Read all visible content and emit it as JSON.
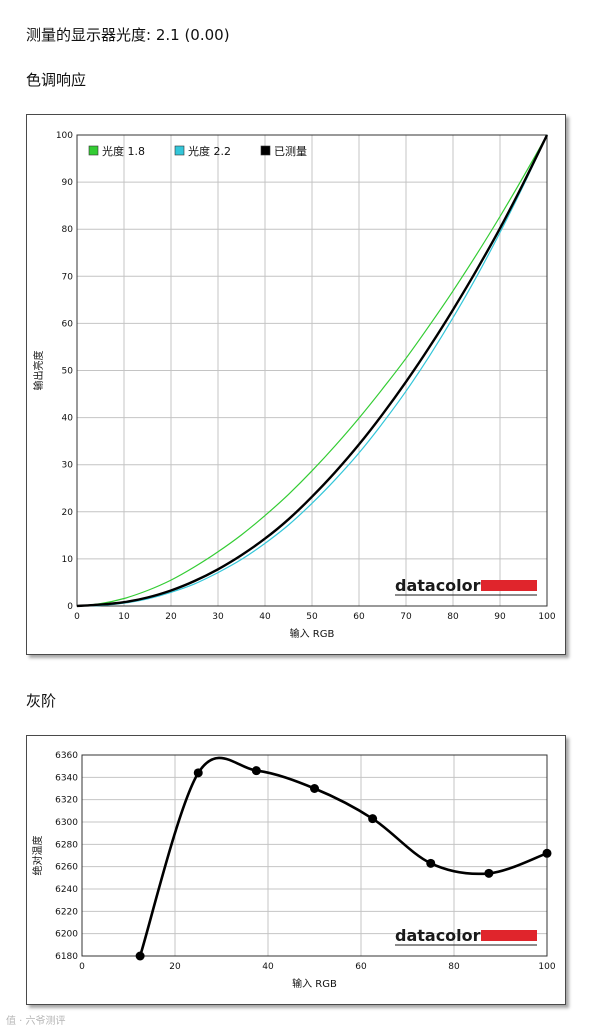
{
  "gamma_line": "测量的显示器光度:  2.1 (0.00)",
  "tone_heading": "色调响应",
  "gray_heading": "灰阶",
  "watermark": "值 · 六爷测评",
  "logo": {
    "text": "datacolor",
    "bar_color": "#e0252c"
  },
  "chart_data": [
    {
      "type": "line",
      "title": "色调响应",
      "xlabel": "输入 RGB",
      "ylabel": "输出亮度",
      "xlim": [
        0,
        100
      ],
      "ylim": [
        0,
        100
      ],
      "x_ticks": [
        0,
        10,
        20,
        30,
        40,
        50,
        60,
        70,
        80,
        90,
        100
      ],
      "y_ticks": [
        0,
        10,
        20,
        30,
        40,
        50,
        60,
        70,
        80,
        90,
        100
      ],
      "grid": true,
      "legend_position": "top-left",
      "x": [
        0,
        5,
        10,
        15,
        20,
        25,
        30,
        35,
        40,
        45,
        50,
        55,
        60,
        65,
        70,
        75,
        80,
        85,
        90,
        95,
        100
      ],
      "series": [
        {
          "name": "光度 1.8",
          "color": "#33cc33",
          "values": [
            0,
            0.5,
            1.6,
            3.3,
            5.5,
            8.3,
            11.5,
            15.1,
            19.2,
            23.7,
            28.7,
            34.1,
            39.9,
            46.1,
            52.6,
            59.6,
            66.9,
            74.6,
            82.7,
            91.2,
            100
          ]
        },
        {
          "name": "光度 2.2",
          "color": "#33c6d9",
          "values": [
            0,
            0.1,
            0.6,
            1.5,
            2.9,
            4.7,
            7.1,
            9.9,
            13.3,
            17.2,
            21.8,
            26.9,
            32.5,
            38.8,
            45.6,
            53.1,
            61.2,
            69.9,
            79.3,
            89.3,
            100
          ]
        },
        {
          "name": "已测量",
          "color": "#000000",
          "values": [
            0,
            0.3,
            0.8,
            1.8,
            3.3,
            5.3,
            7.8,
            10.8,
            14.3,
            18.4,
            23.2,
            28.5,
            34.3,
            40.7,
            47.6,
            55.0,
            62.9,
            71.3,
            80.2,
            89.8,
            100
          ]
        }
      ]
    },
    {
      "type": "line",
      "title": "灰阶",
      "xlabel": "输入 RGB",
      "ylabel": "绝对温度",
      "xlim": [
        0,
        100
      ],
      "ylim": [
        6180,
        6360
      ],
      "x_ticks": [
        0,
        20,
        40,
        60,
        80,
        100
      ],
      "y_ticks": [
        6180,
        6200,
        6220,
        6240,
        6260,
        6280,
        6300,
        6320,
        6340,
        6360
      ],
      "grid": true,
      "x": [
        12.5,
        25,
        37.5,
        50,
        62.5,
        75,
        87.5,
        100
      ],
      "series": [
        {
          "color": "#000000",
          "values": [
            6180,
            6344,
            6346,
            6330,
            6303,
            6263,
            6254,
            6272
          ]
        }
      ]
    }
  ]
}
